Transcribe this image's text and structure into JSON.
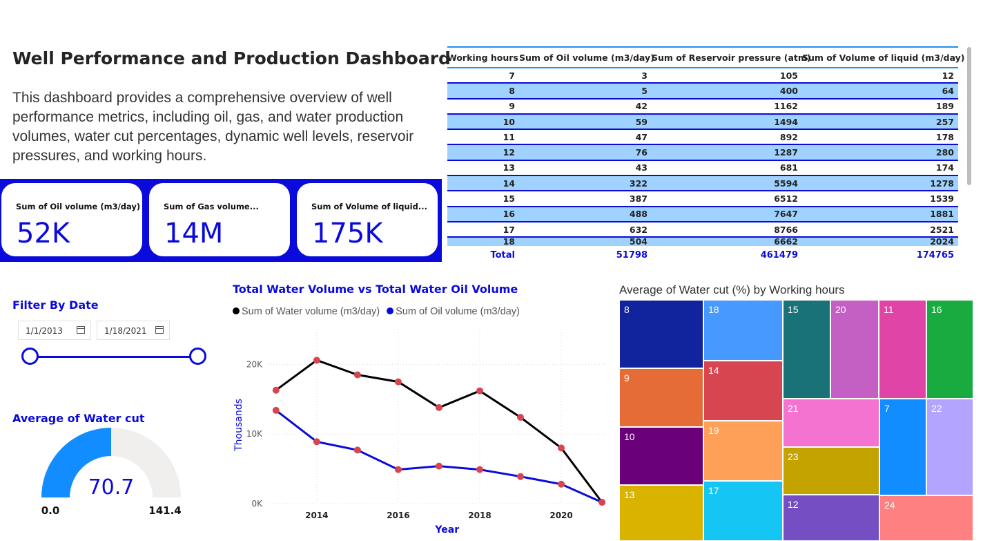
{
  "header": {
    "title": "Well Performance and Production Dashboard",
    "description": "This dashboard provides a comprehensive overview of well performance metrics, including oil, gas, and water production volumes, water cut percentages, dynamic well levels, reservoir pressures, and working hours."
  },
  "kpis": [
    {
      "label": "Sum of Oil volume (m3/day)",
      "value": "52K"
    },
    {
      "label": "Sum of Gas volume...",
      "value": "14M"
    },
    {
      "label": "Sum of Volume of liquid...",
      "value": "175K"
    }
  ],
  "table": {
    "columns": [
      "Working hours",
      "Sum of Oil volume (m3/day)",
      "Sum of Reservoir pressure (atm)",
      "Sum of Volume of liquid (m3/day)"
    ],
    "rows": [
      [
        "7",
        "3",
        "105",
        "12"
      ],
      [
        "8",
        "5",
        "400",
        "64"
      ],
      [
        "9",
        "42",
        "1162",
        "189"
      ],
      [
        "10",
        "59",
        "1494",
        "257"
      ],
      [
        "11",
        "47",
        "892",
        "178"
      ],
      [
        "12",
        "76",
        "1287",
        "280"
      ],
      [
        "13",
        "43",
        "681",
        "174"
      ],
      [
        "14",
        "322",
        "5594",
        "1278"
      ],
      [
        "15",
        "387",
        "6512",
        "1539"
      ],
      [
        "16",
        "488",
        "7647",
        "1881"
      ],
      [
        "17",
        "632",
        "8766",
        "2521"
      ],
      [
        "18",
        "504",
        "6662",
        "2024"
      ]
    ],
    "total": [
      "Total",
      "51798",
      "461479",
      "174765"
    ]
  },
  "filter": {
    "title": "Filter By Date",
    "start_date": "1/1/2013",
    "end_date": "1/18/2021",
    "icon": "calendar-icon"
  },
  "gauge": {
    "title": "Average of Water cut",
    "value_label": "70.7",
    "min_label": "0.0",
    "max_label": "141.4",
    "value": 70.7,
    "min": 0,
    "max": 141.4,
    "fill_color": "#118dff",
    "track_color": "#f0efee"
  },
  "chart_data": [
    {
      "type": "line",
      "title": "Total Water Volume vs Total Water Oil Volume",
      "xlabel": "Year",
      "ylabel": "Thousands",
      "x": [
        2013,
        2014,
        2015,
        2016,
        2017,
        2018,
        2019,
        2020,
        2021
      ],
      "x_tick_labels": [
        "2014",
        "2016",
        "2018",
        "2020"
      ],
      "x_ticks": [
        2014,
        2016,
        2018,
        2020
      ],
      "y_tick_labels": [
        "0K",
        "10K",
        "20K"
      ],
      "y_ticks": [
        0,
        10000,
        20000
      ],
      "ylim": [
        0,
        25000
      ],
      "xlim": [
        2012.8,
        2021.1
      ],
      "grid": true,
      "legend": "top-left",
      "series": [
        {
          "name": "Sum of Water volume (m3/day)",
          "color": "#000000",
          "values": [
            16300,
            20600,
            18500,
            17500,
            13800,
            16200,
            12400,
            8000,
            200
          ]
        },
        {
          "name": "Sum of Oil volume (m3/day)",
          "color": "#0a0adc",
          "values": [
            13400,
            8900,
            7700,
            4900,
            5400,
            4900,
            3900,
            2800,
            200
          ]
        }
      ],
      "marker_color": "#d64550"
    },
    {
      "type": "treemap",
      "title": "Average of Water cut (%) by Working hours",
      "categories": [
        "8",
        "9",
        "10",
        "13",
        "18",
        "14",
        "19",
        "17",
        "15",
        "20",
        "11",
        "16",
        "21",
        "7",
        "22",
        "23",
        "12",
        "24"
      ],
      "colors": [
        "#12239e",
        "#e66c37",
        "#6b007b",
        "#d9b300",
        "#4599ff",
        "#d64550",
        "#fea057",
        "#15c6f4",
        "#197278",
        "#c45fc4",
        "#e044a7",
        "#1aab40",
        "#f472d0",
        "#118dff",
        "#b3a4ff",
        "#c4a200",
        "#744ec2",
        "#ff8080"
      ]
    }
  ]
}
